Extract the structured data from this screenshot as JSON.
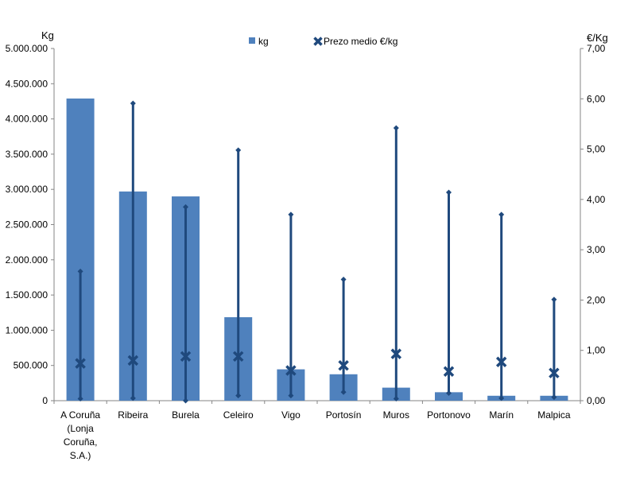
{
  "chart_data": {
    "type": "bar",
    "categories": [
      [
        "A Coruña",
        "(Lonja",
        "Coruña,",
        "S.A.)"
      ],
      [
        "Ribeira"
      ],
      [
        "Burela"
      ],
      [
        "Celeiro"
      ],
      [
        "Vigo"
      ],
      [
        "Portosín"
      ],
      [
        "Muros"
      ],
      [
        "Portonovo"
      ],
      [
        "Marín"
      ],
      [
        "Malpica"
      ]
    ],
    "y_left_label": "Kg",
    "y_right_label": "€/Kg",
    "y_left_lim": [
      0,
      5000000
    ],
    "y_right_lim": [
      0,
      7
    ],
    "y_left_ticks": [
      "0",
      "500.000",
      "1.000.000",
      "1.500.000",
      "2.000.000",
      "2.500.000",
      "3.000.000",
      "3.500.000",
      "4.000.000",
      "4.500.000",
      "5.000.000"
    ],
    "y_right_ticks": [
      "0,00",
      "1,00",
      "2,00",
      "3,00",
      "4,00",
      "5,00",
      "6,00",
      "7,00"
    ],
    "grid": false,
    "legend_position": "top-center",
    "series": [
      {
        "name": "kg",
        "kind": "bar",
        "color": "#4f81bd",
        "axis": "left",
        "values": [
          4290000,
          2970000,
          2900000,
          1185000,
          445000,
          375000,
          185000,
          120000,
          70000,
          70000
        ]
      },
      {
        "name": "Prezo medio €/kg",
        "kind": "hi-lo-marker",
        "color": "#1f497d",
        "axis": "right",
        "values": [
          0.74,
          0.8,
          0.88,
          0.88,
          0.6,
          0.7,
          0.93,
          0.58,
          0.77,
          0.55
        ],
        "high": [
          2.57,
          5.91,
          3.85,
          4.98,
          3.7,
          2.41,
          5.42,
          4.14,
          3.7,
          2.01
        ],
        "low": [
          0.04,
          0.05,
          0.0,
          0.1,
          0.1,
          0.17,
          0.04,
          0.15,
          0.05,
          0.07
        ]
      }
    ]
  }
}
